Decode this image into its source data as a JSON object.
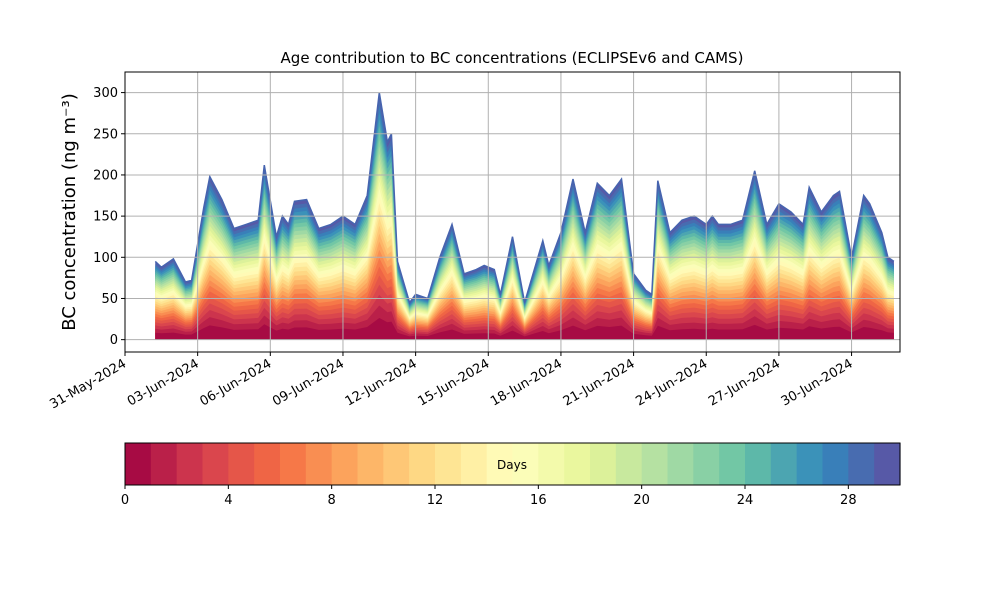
{
  "chart_data": {
    "type": "area",
    "title": "Age contribution to BC concentrations (ECLIPSEv6 and CAMS)",
    "ylabel": "BC concentration (ng m⁻³)",
    "ylim": [
      -15,
      325
    ],
    "yticks": [
      0,
      50,
      100,
      150,
      200,
      250,
      300
    ],
    "xlim": [
      "2024-05-31",
      "2024-07-02"
    ],
    "xticks": [
      "2024-05-31",
      "2024-06-03",
      "2024-06-06",
      "2024-06-09",
      "2024-06-12",
      "2024-06-15",
      "2024-06-18",
      "2024-06-21",
      "2024-06-24",
      "2024-06-27",
      "2024-06-30"
    ],
    "xtick_labels": [
      "31-May-2024",
      "03-Jun-2024",
      "06-Jun-2024",
      "09-Jun-2024",
      "12-Jun-2024",
      "15-Jun-2024",
      "18-Jun-2024",
      "21-Jun-2024",
      "24-Jun-2024",
      "27-Jun-2024",
      "30-Jun-2024"
    ],
    "grid": true,
    "stack_levels": 30,
    "total_series": {
      "x": [
        "2024-06-01T06:00",
        "2024-06-01T12:00",
        "2024-06-02T00:00",
        "2024-06-02T12:00",
        "2024-06-02T18:00",
        "2024-06-03T06:00",
        "2024-06-03T12:00",
        "2024-06-04T00:00",
        "2024-06-04T12:00",
        "2024-06-05T00:00",
        "2024-06-05T12:00",
        "2024-06-05T18:00",
        "2024-06-06T06:00",
        "2024-06-06T12:00",
        "2024-06-06T18:00",
        "2024-06-07T00:00",
        "2024-06-07T12:00",
        "2024-06-08T00:00",
        "2024-06-08T12:00",
        "2024-06-09T00:00",
        "2024-06-09T12:00",
        "2024-06-10T00:00",
        "2024-06-10T12:00",
        "2024-06-10T20:00",
        "2024-06-11T00:00",
        "2024-06-11T06:00",
        "2024-06-11T12:00",
        "2024-06-11T18:00",
        "2024-06-12T00:00",
        "2024-06-12T12:00",
        "2024-06-13T00:00",
        "2024-06-13T12:00",
        "2024-06-14T00:00",
        "2024-06-14T12:00",
        "2024-06-14T20:00",
        "2024-06-15T06:00",
        "2024-06-15T12:00",
        "2024-06-16T00:00",
        "2024-06-16T12:00",
        "2024-06-17T00:00",
        "2024-06-17T06:00",
        "2024-06-17T12:00",
        "2024-06-18T00:00",
        "2024-06-18T12:00",
        "2024-06-19T00:00",
        "2024-06-19T12:00",
        "2024-06-20T00:00",
        "2024-06-20T12:00",
        "2024-06-21T00:00",
        "2024-06-21T12:00",
        "2024-06-21T18:00",
        "2024-06-22T00:00",
        "2024-06-22T12:00",
        "2024-06-23T00:00",
        "2024-06-23T12:00",
        "2024-06-23T18:00",
        "2024-06-24T00:00",
        "2024-06-24T06:00",
        "2024-06-24T12:00",
        "2024-06-25T00:00",
        "2024-06-25T12:00",
        "2024-06-26T00:00",
        "2024-06-26T12:00",
        "2024-06-27T00:00",
        "2024-06-27T12:00",
        "2024-06-28T00:00",
        "2024-06-28T06:00",
        "2024-06-28T18:00",
        "2024-06-29T06:00",
        "2024-06-29T12:00",
        "2024-06-30T00:00",
        "2024-06-30T12:00",
        "2024-06-30T18:00",
        "2024-07-01T06:00",
        "2024-07-01T12:00",
        "2024-07-01T18:00"
      ],
      "y": [
        95,
        88,
        98,
        70,
        72,
        160,
        198,
        170,
        135,
        140,
        145,
        212,
        125,
        150,
        140,
        168,
        170,
        135,
        140,
        150,
        140,
        175,
        300,
        240,
        250,
        95,
        70,
        45,
        55,
        50,
        100,
        140,
        80,
        85,
        90,
        85,
        55,
        125,
        45,
        95,
        120,
        90,
        130,
        195,
        130,
        190,
        175,
        195,
        80,
        60,
        55,
        193,
        130,
        145,
        150,
        145,
        140,
        150,
        140,
        140,
        145,
        205,
        140,
        165,
        155,
        140,
        185,
        155,
        175,
        180,
        100,
        175,
        165,
        130,
        100,
        95
      ],
      "note": "top envelope (sum of all age bins)"
    },
    "colorbar": {
      "label": "Days",
      "min": 0,
      "max": 30,
      "ticks": [
        0,
        4,
        8,
        12,
        16,
        20,
        24,
        28
      ],
      "colormap": "Spectral"
    }
  }
}
